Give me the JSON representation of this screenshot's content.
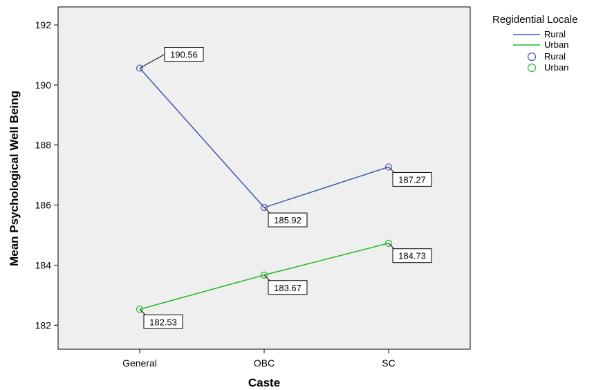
{
  "chart_data": {
    "type": "line",
    "xlabel": "Caste",
    "ylabel": "Mean Psychological Well Being",
    "categories": [
      "General",
      "OBC",
      "SC"
    ],
    "ylim": [
      181.2,
      192.6
    ],
    "yticks": [
      182,
      184,
      186,
      188,
      190,
      192
    ],
    "plot_background": "#efefef",
    "grid": false,
    "legend": {
      "title": "Regidential Locale",
      "placement": "top-right, outside plot",
      "line_entries": [
        "Rural",
        "Urban"
      ],
      "marker_entries": [
        "Rural",
        "Urban"
      ]
    },
    "series": [
      {
        "name": "Rural",
        "color": "#3e58ac",
        "marker": "open-circle",
        "values": [
          190.56,
          185.92,
          187.27
        ],
        "labels": [
          "190.56",
          "185.92",
          "187.27"
        ]
      },
      {
        "name": "Urban",
        "color": "#22bb22",
        "marker": "open-circle",
        "values": [
          182.53,
          183.67,
          184.73
        ],
        "labels": [
          "182.53",
          "183.67",
          "184.73"
        ]
      }
    ]
  }
}
